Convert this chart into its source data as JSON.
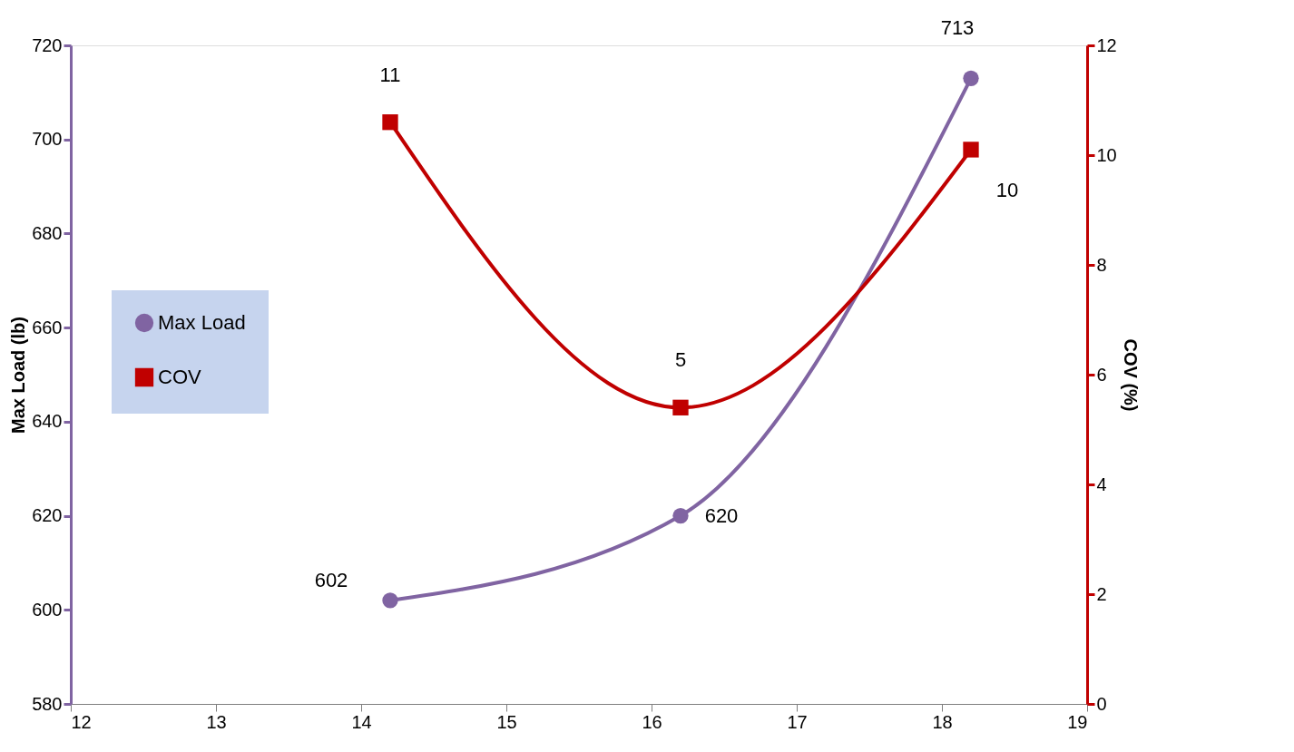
{
  "chart_data": {
    "type": "line",
    "ylabel": "Max Load (lb)",
    "y2label": "COV (%)",
    "xlim": [
      12,
      19
    ],
    "xticks": [
      12,
      13,
      14,
      15,
      16,
      17,
      18,
      19
    ],
    "ylim": [
      580,
      720
    ],
    "yticks": [
      580,
      600,
      620,
      640,
      660,
      680,
      700,
      720
    ],
    "y2lim": [
      0,
      12
    ],
    "y2ticks": [
      0,
      2,
      4,
      6,
      8,
      10,
      12
    ],
    "series": [
      {
        "name": "Max Load",
        "color": "#8064a2",
        "x": [
          14.2,
          16.2,
          18.2
        ],
        "values": [
          602,
          620,
          713
        ],
        "value_labels": [
          "602",
          "620",
          "713"
        ],
        "marker": "circle"
      },
      {
        "name": "COV",
        "color": "#c00000",
        "axis": "y2",
        "x": [
          14.2,
          16.2,
          18.2
        ],
        "values": [
          10.6,
          5.4,
          10.1
        ],
        "value_labels": [
          "11",
          "5",
          "10"
        ],
        "marker": "square"
      }
    ],
    "legend": "left",
    "grid": false
  }
}
